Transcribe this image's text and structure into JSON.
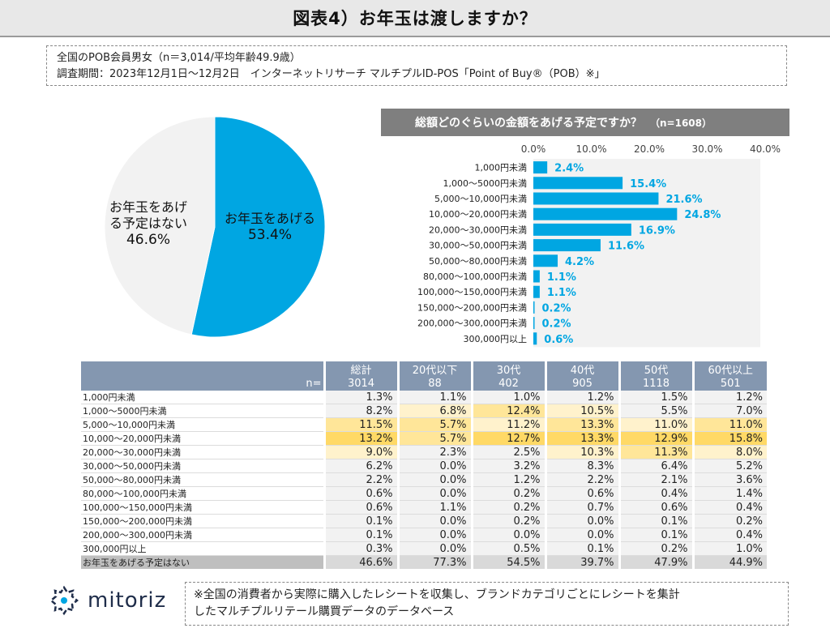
{
  "title": "図表4）お年玉は渡しますか？",
  "survey": {
    "line1": "全国のPOB会員男女（n＝3,014/平均年齢49.9歳）",
    "line2": "調査期間：2023年12月1日～12月2日　インターネットリサーチ マルチプルID-POS「Point of Buy®（POB）※」"
  },
  "colors": {
    "accent": "#00a6e2",
    "pie_other": "#f2f2f2",
    "header_gray": "#7f7f7f",
    "table_header": "#8497b0"
  },
  "chart_data": [
    {
      "type": "pie",
      "slices": [
        {
          "label_lines": [
            "お年玉をあげる"
          ],
          "pct_text": "53.4%",
          "value": 53.4,
          "color": "#00a6e2"
        },
        {
          "label_lines": [
            "お年玉をあげ",
            "る予定はない"
          ],
          "pct_text": "46.6%",
          "value": 46.6,
          "color": "#f2f2f2"
        }
      ]
    },
    {
      "type": "bar",
      "orientation": "horizontal",
      "title": "総額どのぐらいの金額をあげる予定ですか？",
      "n_label": "（n=1608）",
      "xlim": [
        0,
        40
      ],
      "xticks": [
        "0.0%",
        "10.0%",
        "20.0%",
        "30.0%",
        "40.0%"
      ],
      "categories": [
        "1,000円未満",
        "1,000～5000円未満",
        "5,000～10,000円未満",
        "10,000～20,000円未満",
        "20,000～30,000円未満",
        "30,000～50,000円未満",
        "50,000～80,000円未満",
        "80,000～100,000円未満",
        "100,000～150,000円未満",
        "150,000～200,000円未満",
        "200,000～300,000円未満",
        "300,000円以上"
      ],
      "values": [
        2.4,
        15.4,
        21.6,
        24.8,
        16.9,
        11.6,
        4.2,
        1.1,
        1.1,
        0.2,
        0.2,
        0.6
      ],
      "labels": [
        "2.4%",
        "15.4%",
        "21.6%",
        "24.8%",
        "16.9%",
        "11.6%",
        "4.2%",
        "1.1%",
        "1.1%",
        "0.2%",
        "0.2%",
        "0.6%"
      ]
    },
    {
      "type": "table",
      "n_label": "n=",
      "columns": [
        "総計",
        "20代以下",
        "30代",
        "40代",
        "50代",
        "60代以上"
      ],
      "n_values": [
        "3014",
        "88",
        "402",
        "905",
        "1118",
        "501"
      ],
      "rows": [
        {
          "label": "1,000円未満",
          "cells": [
            "1.3%",
            "1.1%",
            "1.0%",
            "1.2%",
            "1.5%",
            "1.2%"
          ],
          "heat": [
            0,
            0,
            0,
            0,
            0,
            0
          ]
        },
        {
          "label": "1,000～5000円未満",
          "cells": [
            "8.2%",
            "6.8%",
            "12.4%",
            "10.5%",
            "5.5%",
            "7.0%"
          ],
          "heat": [
            0,
            1,
            2,
            1,
            0,
            0
          ]
        },
        {
          "label": "5,000～10,000円未満",
          "cells": [
            "11.5%",
            "5.7%",
            "11.2%",
            "13.3%",
            "11.0%",
            "11.0%"
          ],
          "heat": [
            2,
            2,
            1,
            2,
            1,
            2
          ]
        },
        {
          "label": "10,000～20,000円未満",
          "cells": [
            "13.2%",
            "5.7%",
            "12.7%",
            "13.3%",
            "12.9%",
            "15.8%"
          ],
          "heat": [
            3,
            2,
            3,
            3,
            3,
            3
          ]
        },
        {
          "label": "20,000～30,000円未満",
          "cells": [
            "9.0%",
            "2.3%",
            "2.5%",
            "10.3%",
            "11.3%",
            "8.0%"
          ],
          "heat": [
            1,
            0,
            0,
            1,
            2,
            1
          ]
        },
        {
          "label": "30,000～50,000円未満",
          "cells": [
            "6.2%",
            "0.0%",
            "3.2%",
            "8.3%",
            "6.4%",
            "5.2%"
          ],
          "heat": [
            0,
            0,
            0,
            0,
            0,
            0
          ]
        },
        {
          "label": "50,000～80,000円未満",
          "cells": [
            "2.2%",
            "0.0%",
            "1.2%",
            "2.2%",
            "2.1%",
            "3.6%"
          ],
          "heat": [
            0,
            0,
            0,
            0,
            0,
            0
          ]
        },
        {
          "label": "80,000～100,000円未満",
          "cells": [
            "0.6%",
            "0.0%",
            "0.2%",
            "0.6%",
            "0.4%",
            "1.4%"
          ],
          "heat": [
            0,
            0,
            0,
            0,
            0,
            0
          ]
        },
        {
          "label": "100,000～150,000円未満",
          "cells": [
            "0.6%",
            "1.1%",
            "0.2%",
            "0.7%",
            "0.6%",
            "0.4%"
          ],
          "heat": [
            0,
            0,
            0,
            0,
            0,
            0
          ]
        },
        {
          "label": "150,000～200,000円未満",
          "cells": [
            "0.1%",
            "0.0%",
            "0.2%",
            "0.0%",
            "0.1%",
            "0.2%"
          ],
          "heat": [
            0,
            0,
            0,
            0,
            0,
            0
          ]
        },
        {
          "label": "200,000～300,000円未満",
          "cells": [
            "0.1%",
            "0.0%",
            "0.0%",
            "0.0%",
            "0.1%",
            "0.4%"
          ],
          "heat": [
            0,
            0,
            0,
            0,
            0,
            0
          ]
        },
        {
          "label": "300,000円以上",
          "cells": [
            "0.3%",
            "0.0%",
            "0.5%",
            "0.1%",
            "0.2%",
            "1.0%"
          ],
          "heat": [
            0,
            0,
            0,
            0,
            0,
            0
          ]
        },
        {
          "label": "お年玉をあげる予定はない",
          "cells": [
            "46.6%",
            "77.3%",
            "54.5%",
            "39.7%",
            "47.9%",
            "44.9%"
          ],
          "heat": [
            0,
            0,
            0,
            0,
            0,
            0
          ]
        }
      ],
      "heat_colors": [
        "#f2f2f2",
        "#fff2cc",
        "#ffe699",
        "#ffd966"
      ]
    }
  ],
  "logo": {
    "text": "mitoriz",
    "icon": "mitoriz-logo-icon"
  },
  "note": {
    "line1": "※全国の消費者から実際に購入したレシートを収集し、ブランドカテゴリごとにレシートを集計",
    "line2": "したマルチプルリテール購買データのデータベース"
  }
}
